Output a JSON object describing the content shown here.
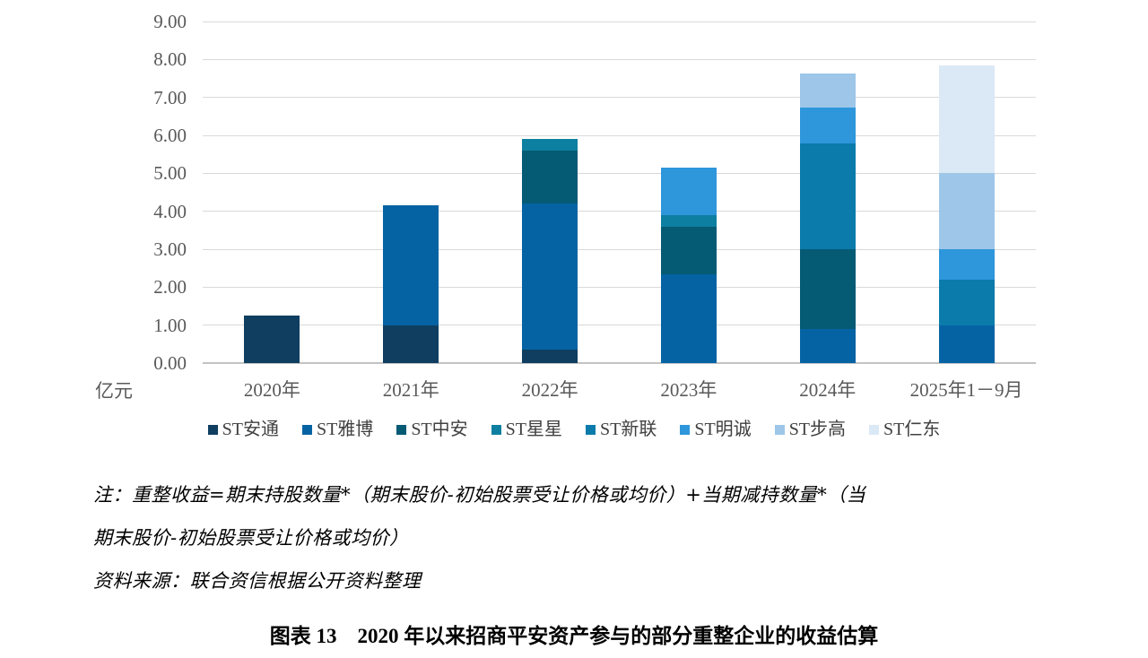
{
  "chart_data": {
    "type": "bar",
    "stacked": true,
    "grid": true,
    "legend_position": "bottom",
    "unit_label": "亿元",
    "ylim": [
      0,
      9
    ],
    "ytick_step": 1,
    "ytick_decimals": 2,
    "gridline_color": "#d9d9d9",
    "axis_label_color": "#595959",
    "categories": [
      "2020年",
      "2021年",
      "2022年",
      "2023年",
      "2024年",
      "2025年1－9月"
    ],
    "series": [
      {
        "name": "ST安通",
        "color": "#0f3e60",
        "values": [
          1.25,
          1.0,
          0.35,
          0,
          0,
          0
        ]
      },
      {
        "name": "ST雅博",
        "color": "#0563a3",
        "values": [
          0,
          3.15,
          3.85,
          2.35,
          0.9,
          1.0
        ]
      },
      {
        "name": "ST中安",
        "color": "#055a74",
        "values": [
          0,
          0,
          1.4,
          1.25,
          2.1,
          0
        ]
      },
      {
        "name": "ST星星",
        "color": "#0d7fa0",
        "values": [
          0,
          0,
          0.3,
          0.3,
          0,
          0
        ]
      },
      {
        "name": "ST新联",
        "color": "#0a7bab",
        "values": [
          0,
          0,
          0,
          0,
          2.78,
          1.2
        ]
      },
      {
        "name": "ST明诚",
        "color": "#2e96db",
        "values": [
          0,
          0,
          0,
          1.25,
          0.95,
          0.8
        ]
      },
      {
        "name": "ST步高",
        "color": "#9dc6e8",
        "values": [
          0,
          0,
          0,
          0,
          0.89,
          2.0
        ]
      },
      {
        "name": "ST仁东",
        "color": "#dbe8f6",
        "values": [
          0,
          0,
          0,
          0,
          0,
          2.85
        ]
      }
    ],
    "totals": [
      1.25,
      4.15,
      5.9,
      5.15,
      7.62,
      7.85
    ]
  },
  "notes": {
    "line1": "注：重整收益=期末持股数量*（期末股价-初始股票受让价格或均价）+当期减持数量*（当",
    "line2": "期末股价-初始股票受让价格或均价）",
    "line3": "资料来源：联合资信根据公开资料整理"
  },
  "caption": "图表 13　2020 年以来招商平安资产参与的部分重整企业的收益估算"
}
